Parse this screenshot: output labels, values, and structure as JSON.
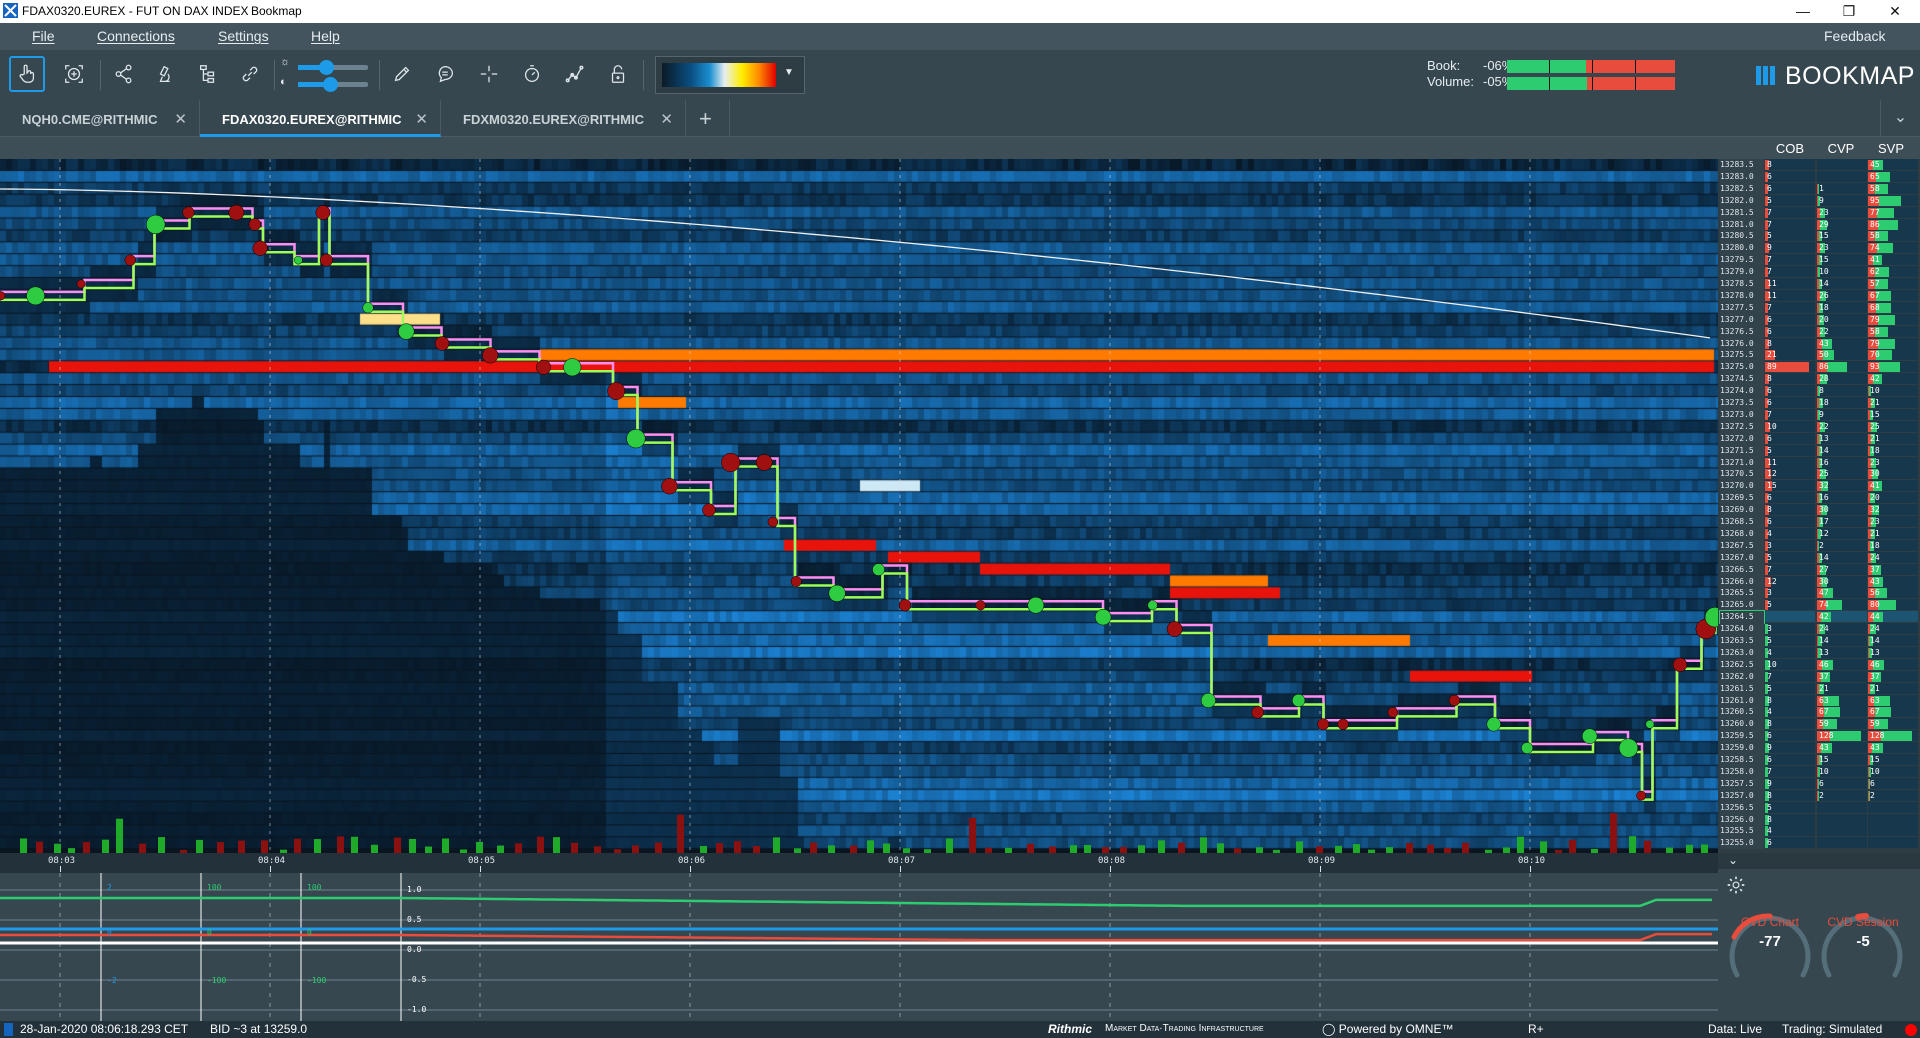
{
  "window": {
    "title": "FDAX0320.EUREX - FUT ON DAX INDEX",
    "app_name": "Bookmap",
    "controls": [
      "minimize-icon",
      "restore-icon",
      "close-icon"
    ]
  },
  "menu": {
    "items": [
      "File",
      "Connections",
      "Settings",
      "Help"
    ],
    "feedback": "Feedback"
  },
  "toolbar": {
    "tools": [
      "hand-pointer-icon",
      "zoom-fit-icon",
      "share-nodes-icon",
      "microscope-icon",
      "hierarchy-icon",
      "link-icon",
      "pencil-icon",
      "chat-icon",
      "crosshair-icon",
      "stopwatch-icon",
      "chart-dots-icon",
      "lock-icon"
    ],
    "active_tool": "hand-pointer-icon",
    "brightness_level": 0.4,
    "contrast_level": 0.45,
    "colormap_dropdown_icon": "caret-down-icon"
  },
  "book_stats": {
    "book_label": "Book:",
    "book_value": "-06%",
    "volume_label": "Volume:",
    "volume_value": "-05%",
    "book_bid_fraction": 0.47,
    "volume_bid_fraction": 0.475,
    "bid_color": "#2ecc71",
    "ask_color": "#e74c3c"
  },
  "logo": {
    "text": "BOOKMAP",
    "color": "#1e9be8"
  },
  "tabs": [
    {
      "label": "NQH0.CME@RITHMIC",
      "active": false
    },
    {
      "label": "FDAX0320.EUREX@RITHMIC",
      "active": true
    },
    {
      "label": "FDXM0320.EUREX@RITHMIC",
      "active": false
    }
  ],
  "tab_add": "+",
  "ladder": {
    "headers": [
      "COB",
      "CVP",
      "SVP"
    ],
    "highlighted_price": "13264.5",
    "rows": [
      [
        "13283.5",
        "8",
        "",
        "45"
      ],
      [
        "13283.0",
        "6",
        "",
        "65"
      ],
      [
        "13282.5",
        "6",
        "1",
        "58"
      ],
      [
        "13282.0",
        "5",
        "9",
        "95"
      ],
      [
        "13281.5",
        "7",
        "23",
        "77"
      ],
      [
        "13281.0",
        "7",
        "29",
        "86"
      ],
      [
        "13280.5",
        "5",
        "15",
        "58"
      ],
      [
        "13280.0",
        "9",
        "23",
        "74"
      ],
      [
        "13279.5",
        "7",
        "15",
        "41"
      ],
      [
        "13279.0",
        "7",
        "10",
        "62"
      ],
      [
        "13278.5",
        "11",
        "14",
        "57"
      ],
      [
        "13278.0",
        "11",
        "26",
        "67"
      ],
      [
        "13277.5",
        "7",
        "18",
        "68"
      ],
      [
        "13277.0",
        "6",
        "20",
        "79"
      ],
      [
        "13276.5",
        "6",
        "22",
        "58"
      ],
      [
        "13276.0",
        "8",
        "43",
        "79"
      ],
      [
        "13275.5",
        "21",
        "50",
        "70"
      ],
      [
        "13275.0",
        "89",
        "86",
        "93"
      ],
      [
        "13274.5",
        "8",
        "28",
        "42"
      ],
      [
        "13274.0",
        "6",
        "8",
        "10"
      ],
      [
        "13273.5",
        "6",
        "18",
        "21"
      ],
      [
        "13273.0",
        "7",
        "9",
        "15"
      ],
      [
        "13272.5",
        "10",
        "22",
        "25"
      ],
      [
        "13272.0",
        "6",
        "13",
        "21"
      ],
      [
        "13271.5",
        "5",
        "14",
        "18"
      ],
      [
        "13271.0",
        "11",
        "16",
        "23"
      ],
      [
        "13270.5",
        "12",
        "25",
        "30"
      ],
      [
        "13270.0",
        "15",
        "32",
        "41"
      ],
      [
        "13269.5",
        "6",
        "16",
        "20"
      ],
      [
        "13269.0",
        "8",
        "30",
        "32"
      ],
      [
        "13268.5",
        "6",
        "17",
        "23"
      ],
      [
        "13268.0",
        "4",
        "12",
        "21"
      ],
      [
        "13267.5",
        "3",
        "2",
        "18"
      ],
      [
        "13267.0",
        "5",
        "14",
        "24"
      ],
      [
        "13266.5",
        "7",
        "27",
        "37"
      ],
      [
        "13266.0",
        "12",
        "30",
        "43"
      ],
      [
        "13265.5",
        "3",
        "47",
        "56"
      ],
      [
        "13265.0",
        "5",
        "74",
        "80"
      ],
      [
        "13264.5",
        "",
        "42",
        "44"
      ],
      [
        "13264.0",
        "3",
        "24",
        "24"
      ],
      [
        "13263.5",
        "5",
        "14",
        "14"
      ],
      [
        "13263.0",
        "4",
        "13",
        "13"
      ],
      [
        "13262.5",
        "10",
        "46",
        "46"
      ],
      [
        "13262.0",
        "7",
        "37",
        "37"
      ],
      [
        "13261.5",
        "5",
        "21",
        "21"
      ],
      [
        "13261.0",
        "8",
        "63",
        "63"
      ],
      [
        "13260.5",
        "4",
        "67",
        "67"
      ],
      [
        "13260.0",
        "8",
        "59",
        "59"
      ],
      [
        "13259.5",
        "6",
        "128",
        "128"
      ],
      [
        "13259.0",
        "9",
        "43",
        "43"
      ],
      [
        "13258.5",
        "6",
        "15",
        "15"
      ],
      [
        "13258.0",
        "7",
        "10",
        "10"
      ],
      [
        "13257.5",
        "9",
        "6",
        "6"
      ],
      [
        "13257.0",
        "8",
        "2",
        "2"
      ],
      [
        "13256.5",
        "5",
        "",
        ""
      ],
      [
        "13256.0",
        "8",
        "",
        ""
      ],
      [
        "13255.5",
        "4",
        "",
        ""
      ],
      [
        "13255.0",
        "6",
        "",
        ""
      ]
    ]
  },
  "chart": {
    "time_labels": [
      "08:03",
      "08:04",
      "08:05",
      "08:06",
      "08:07",
      "08:08",
      "08:09",
      "08:10"
    ],
    "price_trace": [
      [
        "08:02:43",
        13278.0
      ],
      [
        "08:02:53",
        13278.0
      ],
      [
        "08:03:07",
        13278.5
      ],
      [
        "08:03:21",
        13279.5
      ],
      [
        "08:03:27",
        13281.0
      ],
      [
        "08:03:37",
        13281.5
      ],
      [
        "08:03:49",
        13281.5
      ],
      [
        "08:03:55",
        13281.0
      ],
      [
        "08:03:58",
        13280.0
      ],
      [
        "08:04:07",
        13279.5
      ],
      [
        "08:04:14",
        13281.5
      ],
      [
        "08:04:17",
        13279.5
      ],
      [
        "08:04:28",
        13277.5
      ],
      [
        "08:04:38",
        13276.5
      ],
      [
        "08:04:49",
        13276.0
      ],
      [
        "08:05:03",
        13275.5
      ],
      [
        "08:05:17",
        13275.0
      ],
      [
        "08:05:27",
        13275.0
      ],
      [
        "08:05:38",
        13274.0
      ],
      [
        "08:05:45",
        13272.0
      ],
      [
        "08:05:55",
        13270.0
      ],
      [
        "08:06:06",
        13269.0
      ],
      [
        "08:06:13",
        13271.0
      ],
      [
        "08:06:20",
        13271.0
      ],
      [
        "08:06:25",
        13268.5
      ],
      [
        "08:06:30",
        13266.0
      ],
      [
        "08:06:41",
        13265.5
      ],
      [
        "08:06:55",
        13266.5
      ],
      [
        "08:07:02",
        13265.0
      ],
      [
        "08:07:23",
        13265.0
      ],
      [
        "08:07:40",
        13265.0
      ],
      [
        "08:07:58",
        13264.5
      ],
      [
        "08:08:12",
        13265.0
      ],
      [
        "08:08:19",
        13264.0
      ],
      [
        "08:08:29",
        13261.0
      ],
      [
        "08:08:43",
        13260.5
      ],
      [
        "08:08:54",
        13261.0
      ],
      [
        "08:09:01",
        13260.0
      ],
      [
        "08:09:08",
        13260.0
      ],
      [
        "08:09:22",
        13260.5
      ],
      [
        "08:09:39",
        13261.0
      ],
      [
        "08:09:50",
        13260.0
      ],
      [
        "08:10:00",
        13259.0
      ],
      [
        "08:10:18",
        13259.5
      ],
      [
        "08:10:28",
        13259.0
      ],
      [
        "08:10:32",
        13257.0
      ],
      [
        "08:10:35",
        13260.0
      ],
      [
        "08:10:42",
        13262.5
      ],
      [
        "08:10:49",
        13264.0
      ],
      [
        "08:10:53",
        13264.5
      ]
    ],
    "bid_line_color": "#9cff57",
    "ask_line_color": "#ff8ef0",
    "trade_up_color": "#2ecc40",
    "trade_down_color": "#a01010"
  },
  "indicator": {
    "blue_labels": [
      "2",
      "0",
      "-2"
    ],
    "green_labels_1": [
      "100",
      "0",
      "-100"
    ],
    "green_labels_2": [
      "100",
      "0",
      "-100"
    ],
    "white_labels": [
      "1.0",
      "0.5",
      "0.0",
      "-0.5",
      "-1.0"
    ],
    "colors": {
      "blue": "#1e9be8",
      "green": "#2ecc71",
      "red": "#e74c3c"
    }
  },
  "cvd": {
    "settings_icon": "gear-icon",
    "collapse_icon": "chevron-down-icon",
    "chart_label": "CVD Chart",
    "chart_value": "-77",
    "session_label": "CVD Session",
    "session_value": "-5"
  },
  "status": {
    "timestamp": "28-Jan-2020 08:06:18.293 CET",
    "bid_info": "BID ~3 at 13259.0",
    "rithmic": "Rithmic",
    "rithmic_tagline": "Market Data·Trading Infrastructure",
    "omne": "Powered by OMNE™",
    "r_plus": "R+",
    "data_status": "Data: Live",
    "trading_status": "Trading: Simulated",
    "indicator_color": "#ff0000"
  }
}
